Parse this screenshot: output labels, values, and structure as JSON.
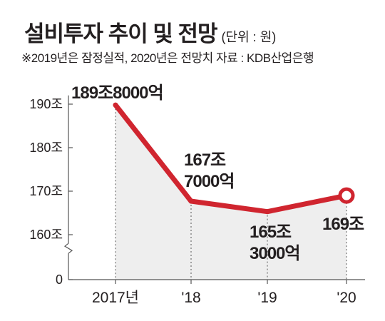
{
  "header": {
    "title": "설비투자 추이 및 전망",
    "unit": "(단위 : 원)",
    "note": "※2019년은 잠정실적, 2020년은 전망치   자료 : KDB산업은행"
  },
  "colors": {
    "line": "#d0252f",
    "area": "#eeeeee",
    "background": "#ffffff",
    "text": "#231f20"
  },
  "chart_data": {
    "type": "line",
    "categories": [
      "2017년",
      "'18",
      "'19",
      "'20"
    ],
    "values": [
      189.8,
      167.7,
      165.3,
      169
    ],
    "data_labels": [
      [
        "189조8000억"
      ],
      [
        "167조",
        "7000억"
      ],
      [
        "165조",
        "3000억"
      ],
      [
        "169조"
      ]
    ],
    "y_ticks": [
      {
        "value": 190,
        "label": "190조"
      },
      {
        "value": 180,
        "label": "180조"
      },
      {
        "value": 170,
        "label": "170조"
      },
      {
        "value": 160,
        "label": "160조"
      },
      {
        "value": 0,
        "label": "0"
      }
    ],
    "ylim": [
      155,
      195
    ],
    "axis_break": true,
    "grid": false,
    "fill_under": true,
    "marker_last_point": true
  }
}
